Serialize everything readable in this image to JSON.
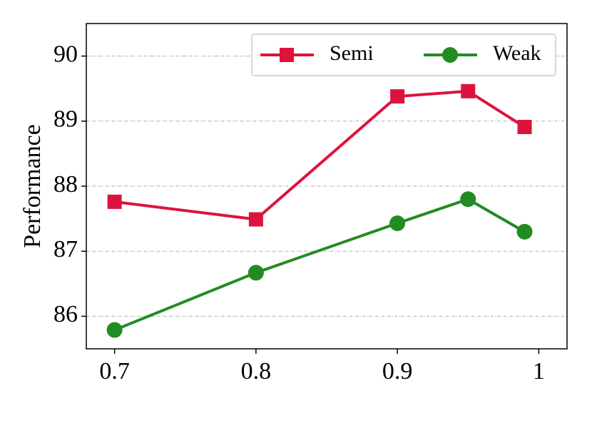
{
  "chart_data": {
    "type": "line",
    "y_label": "Performance",
    "x": [
      0.7,
      0.8,
      0.9,
      0.95,
      0.99
    ],
    "series": [
      {
        "name": "Semi",
        "color": "#dc143c",
        "marker": "square",
        "values": [
          87.76,
          87.49,
          89.38,
          89.46,
          88.91
        ]
      },
      {
        "name": "Weak",
        "color": "#228b22",
        "marker": "circle",
        "values": [
          85.79,
          86.67,
          87.43,
          87.8,
          87.3
        ]
      }
    ],
    "xlim": [
      0.68,
      1.02
    ],
    "xticks": [
      0.7,
      0.8,
      0.9,
      1
    ],
    "ylim": [
      85.5,
      90.5
    ],
    "yticks": [
      86,
      87,
      88,
      89,
      90
    ],
    "grid": true,
    "legend": "upper right"
  }
}
